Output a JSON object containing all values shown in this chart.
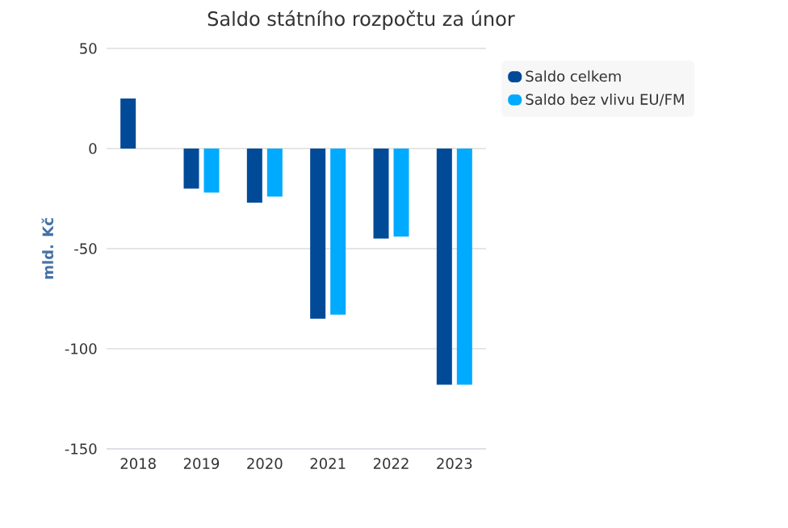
{
  "chart_data": {
    "type": "bar",
    "title": "Saldo státního rozpočtu za únor",
    "ylabel": "mld. Kč",
    "categories": [
      "2018",
      "2019",
      "2020",
      "2021",
      "2022",
      "2023"
    ],
    "series": [
      {
        "name": "Saldo celkem",
        "color": "#004a98",
        "values": [
          25,
          -20,
          -27,
          -85,
          -45,
          -118
        ]
      },
      {
        "name": "Saldo bez vlivu EU/FM",
        "color": "#00aaff",
        "values": [
          null,
          -22,
          -24,
          -83,
          -44,
          -118
        ]
      }
    ],
    "ylim": [
      -150,
      50
    ],
    "yticks": [
      -150,
      -100,
      -50,
      0,
      50
    ],
    "grid": "y",
    "legend": "right"
  }
}
